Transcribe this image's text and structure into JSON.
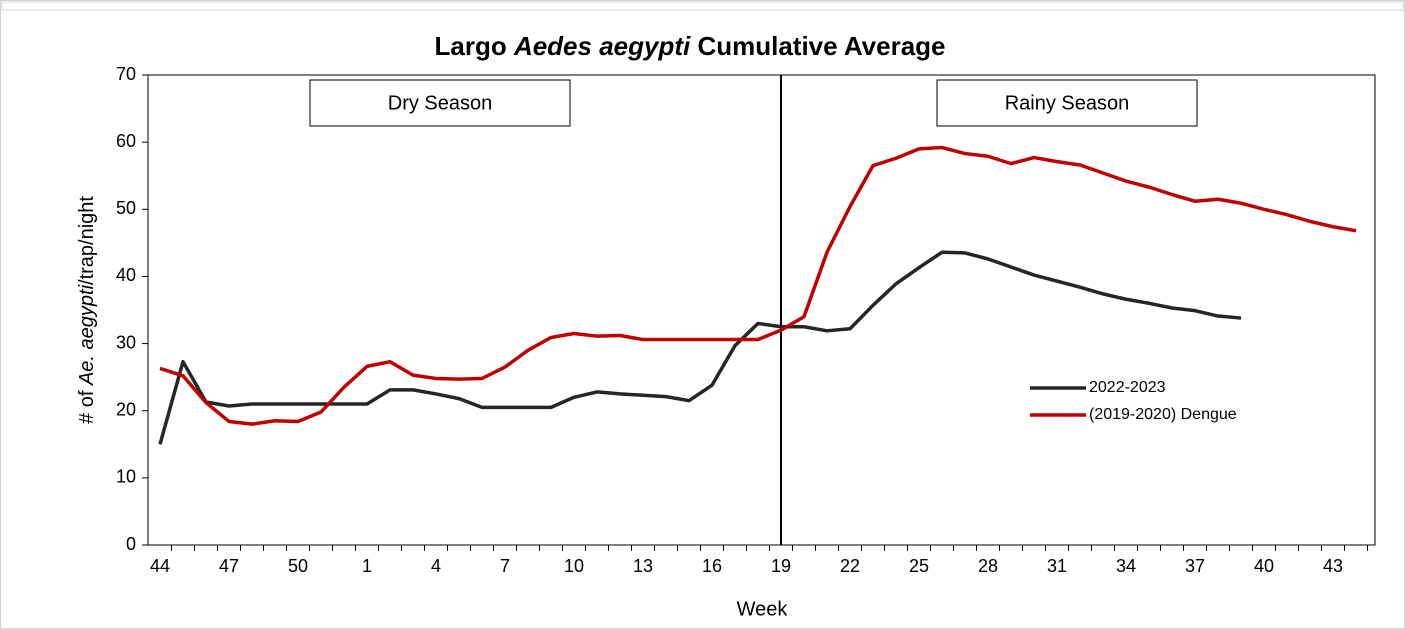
{
  "chart_data": {
    "type": "line",
    "title": [
      {
        "text": "Largo "
      },
      {
        "text": "Aedes aegypti",
        "italic": true
      },
      {
        "text": " Cumulative Average"
      }
    ],
    "x_label": "Week",
    "y_label": [
      {
        "text": "# of "
      },
      {
        "text": "Ae. aegypti",
        "italic": true
      },
      {
        "text": "/trap/night"
      }
    ],
    "categories": [
      "44",
      null,
      null,
      "47",
      null,
      null,
      "50",
      null,
      null,
      "1",
      null,
      null,
      "4",
      null,
      null,
      "7",
      null,
      null,
      "10",
      null,
      null,
      "13",
      null,
      null,
      "16",
      null,
      null,
      "19",
      null,
      null,
      "22",
      null,
      null,
      "25",
      null,
      null,
      "28",
      null,
      null,
      "31",
      null,
      null,
      "34",
      null,
      null,
      "37",
      null,
      null,
      "40",
      null,
      null,
      "43",
      null
    ],
    "ylim": [
      0,
      70
    ],
    "yticks": [
      0,
      10,
      20,
      30,
      40,
      50,
      60,
      70
    ],
    "divider": "19",
    "annotations": [
      "Dry Season",
      "Rainy Season"
    ],
    "legend": "right",
    "series": [
      {
        "name": "2022-2023",
        "color": "#262626",
        "values": [
          15,
          27.3,
          21.3,
          20.7,
          21,
          21,
          21,
          21,
          21,
          21,
          23.1,
          23.1,
          22.5,
          21.8,
          20.5,
          20.5,
          20.5,
          20.5,
          22,
          22.8,
          22.5,
          22.3,
          22.1,
          21.5,
          23.8,
          29.7,
          33,
          32.5,
          32.5,
          31.9,
          32.2,
          35.7,
          38.9,
          41.3,
          43.6,
          43.5,
          42.6,
          41.4,
          40.2,
          39.3,
          38.4,
          37.4,
          36.6,
          36,
          35.3,
          34.9,
          34.1,
          33.8,
          null,
          null,
          null,
          null,
          null
        ]
      },
      {
        "name": "(2019-2020) Dengue",
        "color": "#c00000",
        "values": [
          26.3,
          25.2,
          21.2,
          18.4,
          18,
          18.5,
          18.4,
          19.8,
          23.5,
          26.6,
          27.3,
          25.3,
          24.8,
          24.7,
          24.8,
          26.5,
          29,
          30.9,
          31.5,
          31.1,
          31.2,
          30.6,
          30.6,
          30.6,
          30.6,
          30.6,
          30.6,
          32,
          34,
          43.6,
          50.4,
          56.5,
          57.6,
          59,
          59.2,
          58.3,
          57.9,
          56.8,
          57.7,
          57.1,
          56.6,
          55.4,
          54.2,
          53.3,
          52.2,
          51.2,
          51.5,
          50.9,
          50,
          49.2,
          48.2,
          47.4,
          46.8
        ]
      }
    ]
  }
}
